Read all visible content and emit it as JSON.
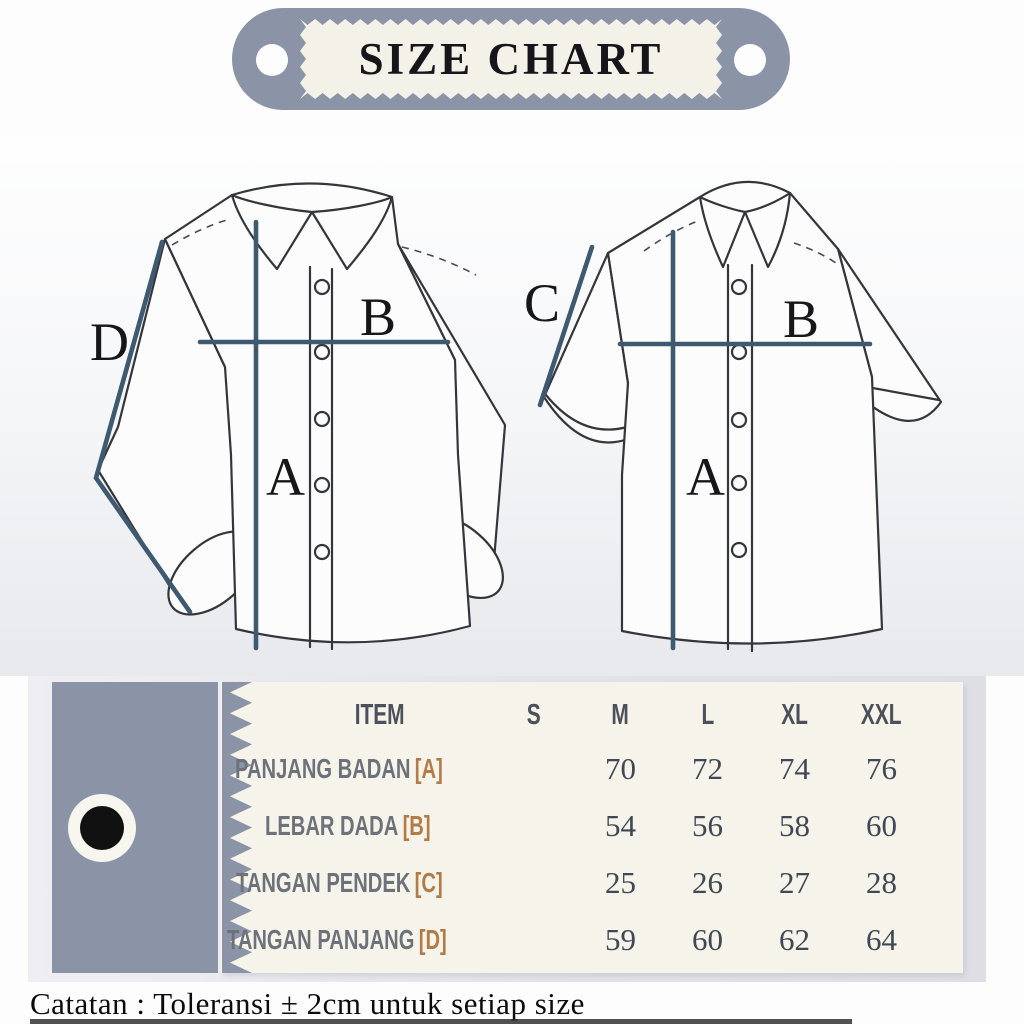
{
  "title": "SIZE CHART",
  "diagram": {
    "long_sleeve_shirt": {
      "label_a": "A",
      "label_b": "B",
      "label_d": "D"
    },
    "short_sleeve_shirt": {
      "label_a": "A",
      "label_b": "B",
      "label_c": "C"
    }
  },
  "table": {
    "columns": [
      "ITEM",
      "S",
      "M",
      "L",
      "XL",
      "XXL"
    ],
    "rows": [
      {
        "item": "PANJANG BADAN",
        "ref": "[A]",
        "values": [
          "",
          "70",
          "72",
          "74",
          "76"
        ]
      },
      {
        "item": "LEBAR DADA",
        "ref": "[B]",
        "values": [
          "",
          "54",
          "56",
          "58",
          "60"
        ]
      },
      {
        "item": "TANGAN PENDEK",
        "ref": "[C]",
        "values": [
          "",
          "25",
          "26",
          "27",
          "28"
        ]
      },
      {
        "item": "TANGAN PANJANG",
        "ref": "[D]",
        "values": [
          "",
          "59",
          "60",
          "62",
          "64"
        ]
      }
    ]
  },
  "note": "Catatan : Toleransi ± 2cm untuk setiap size",
  "colors": {
    "tag_gray": "#8a94a6",
    "cream": "#f4f2e8",
    "measure_line": "#3d5a70",
    "accent_orange": "#b37c46"
  },
  "chart_data": {
    "type": "table",
    "title": "SIZE CHART",
    "columns": [
      "ITEM",
      "S",
      "M",
      "L",
      "XL",
      "XXL"
    ],
    "rows": [
      [
        "PANJANG BADAN [A]",
        "",
        "70",
        "72",
        "74",
        "76"
      ],
      [
        "LEBAR DADA [B]",
        "",
        "54",
        "56",
        "58",
        "60"
      ],
      [
        "TANGAN PENDEK [C]",
        "",
        "25",
        "26",
        "27",
        "28"
      ],
      [
        "TANGAN PANJANG [D]",
        "",
        "59",
        "60",
        "62",
        "64"
      ]
    ],
    "note": "Catatan : Toleransi ± 2cm untuk setiap size"
  }
}
